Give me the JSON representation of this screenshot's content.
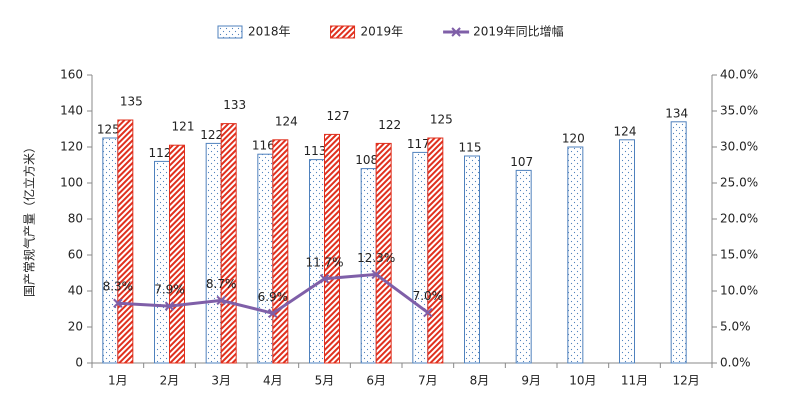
{
  "chart_data": {
    "type": "bar",
    "y_label": "国产常规气产量（亿立方米）",
    "categories": [
      "1月",
      "2月",
      "3月",
      "4月",
      "5月",
      "6月",
      "7月",
      "8月",
      "9月",
      "10月",
      "11月",
      "12月"
    ],
    "series": [
      {
        "name": "2018年",
        "type": "bar",
        "color": "#4f81bd",
        "values": [
          125,
          112,
          122,
          116,
          113,
          108,
          117,
          115,
          107,
          120,
          124,
          134
        ]
      },
      {
        "name": "2019年",
        "type": "bar",
        "color": "#e0301e",
        "values": [
          135,
          121,
          133,
          124,
          127,
          122,
          125,
          null,
          null,
          null,
          null,
          null
        ]
      },
      {
        "name": "2019年同比增幅",
        "type": "line",
        "axis": "y2",
        "color": "#7f5fa8",
        "values": [
          8.3,
          7.9,
          8.7,
          6.9,
          11.7,
          12.3,
          7.0,
          null,
          null,
          null,
          null,
          null
        ],
        "value_labels": [
          "8.3%",
          "7.9%",
          "8.7%",
          "6.9%",
          "11.7%",
          "12.3%",
          "7.0%",
          null,
          null,
          null,
          null,
          null
        ]
      }
    ],
    "ylim": [
      0,
      160
    ],
    "yticks": [
      0,
      20,
      40,
      60,
      80,
      100,
      120,
      140,
      160
    ],
    "y2lim": [
      0,
      40
    ],
    "y2ticks": [
      {
        "value": 0,
        "label": "0.0%"
      },
      {
        "value": 5,
        "label": "5.0%"
      },
      {
        "value": 10,
        "label": "10.0%"
      },
      {
        "value": 15,
        "label": "15.0%"
      },
      {
        "value": 20,
        "label": "20.0%"
      },
      {
        "value": 25,
        "label": "25.0%"
      },
      {
        "value": 30,
        "label": "30.0%"
      },
      {
        "value": 35,
        "label": "35.0%"
      },
      {
        "value": 40,
        "label": "40.0%"
      }
    ],
    "grid": false,
    "legend": "top"
  }
}
